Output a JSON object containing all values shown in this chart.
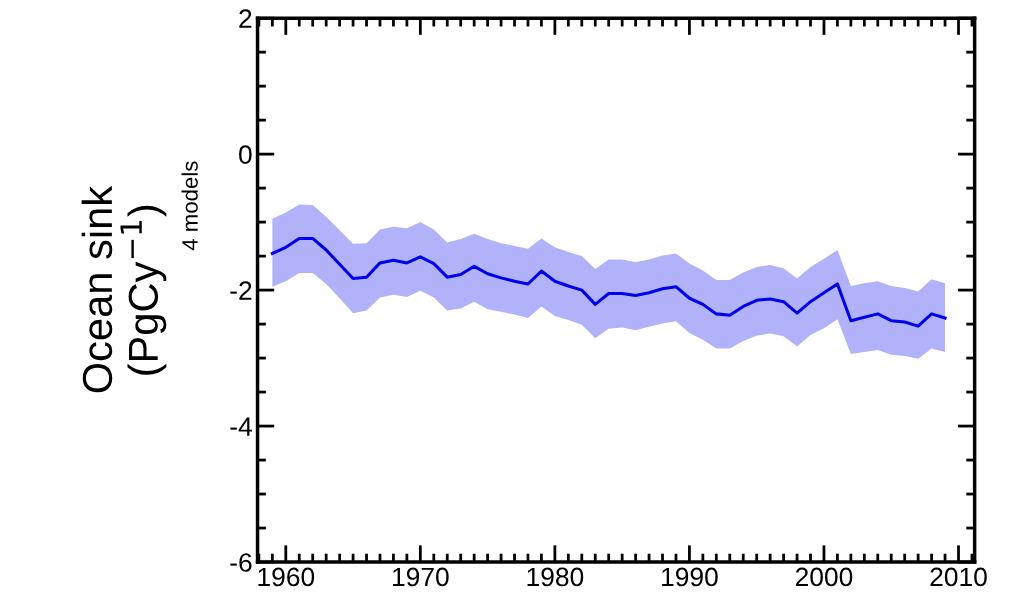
{
  "chart_data": {
    "type": "line",
    "ylabel": "Ocean sink\n(PgCy$^{−1}$)",
    "annotations": [
      "4 models"
    ],
    "x": [
      1959,
      1960,
      1961,
      1962,
      1963,
      1964,
      1965,
      1966,
      1967,
      1968,
      1969,
      1970,
      1971,
      1972,
      1973,
      1974,
      1975,
      1976,
      1977,
      1978,
      1979,
      1980,
      1981,
      1982,
      1983,
      1984,
      1985,
      1986,
      1987,
      1988,
      1989,
      1990,
      1991,
      1992,
      1993,
      1994,
      1995,
      1996,
      1997,
      1998,
      1999,
      2000,
      2001,
      2002,
      2003,
      2004,
      2005,
      2006,
      2007,
      2008,
      2009
    ],
    "series": [
      {
        "color": "#0000ee",
        "values": [
          -1.46,
          -1.37,
          -1.24,
          -1.24,
          -1.41,
          -1.62,
          -1.83,
          -1.81,
          -1.6,
          -1.56,
          -1.6,
          -1.51,
          -1.61,
          -1.81,
          -1.77,
          -1.65,
          -1.76,
          -1.82,
          -1.87,
          -1.91,
          -1.72,
          -1.87,
          -1.94,
          -2.0,
          -2.21,
          -2.05,
          -2.05,
          -2.08,
          -2.04,
          -1.98,
          -1.95,
          -2.12,
          -2.21,
          -2.35,
          -2.37,
          -2.24,
          -2.15,
          -2.13,
          -2.17,
          -2.34,
          -2.17,
          -2.04,
          -1.91,
          -2.45,
          -2.4,
          -2.35,
          -2.45,
          -2.47,
          -2.53,
          -2.35,
          -2.41
        ],
        "upper": [
          -0.95,
          -0.86,
          -0.74,
          -0.75,
          -0.92,
          -1.12,
          -1.32,
          -1.31,
          -1.11,
          -1.07,
          -1.09,
          -1.0,
          -1.11,
          -1.3,
          -1.25,
          -1.17,
          -1.25,
          -1.31,
          -1.35,
          -1.39,
          -1.24,
          -1.37,
          -1.44,
          -1.5,
          -1.69,
          -1.55,
          -1.55,
          -1.59,
          -1.55,
          -1.49,
          -1.46,
          -1.61,
          -1.71,
          -1.85,
          -1.85,
          -1.74,
          -1.66,
          -1.63,
          -1.68,
          -1.83,
          -1.66,
          -1.54,
          -1.41,
          -1.94,
          -1.9,
          -1.87,
          -1.94,
          -1.97,
          -2.02,
          -1.84,
          -1.9
        ],
        "lower": [
          -1.95,
          -1.87,
          -1.75,
          -1.75,
          -1.91,
          -2.12,
          -2.34,
          -2.3,
          -2.11,
          -2.07,
          -2.1,
          -2.01,
          -2.11,
          -2.3,
          -2.27,
          -2.17,
          -2.28,
          -2.32,
          -2.36,
          -2.41,
          -2.24,
          -2.38,
          -2.44,
          -2.51,
          -2.71,
          -2.57,
          -2.55,
          -2.59,
          -2.54,
          -2.49,
          -2.46,
          -2.63,
          -2.73,
          -2.86,
          -2.86,
          -2.75,
          -2.67,
          -2.64,
          -2.68,
          -2.83,
          -2.66,
          -2.56,
          -2.43,
          -2.94,
          -2.91,
          -2.88,
          -2.95,
          -2.97,
          -3.01,
          -2.86,
          -2.91
        ]
      }
    ],
    "xlim": [
      1957.9,
      2011.2
    ],
    "xticks": [
      1960,
      1970,
      1980,
      1990,
      2000,
      2010
    ],
    "ylim": [
      -6,
      2
    ],
    "yticks": [
      -6,
      -4,
      -2,
      0,
      2
    ],
    "grid": false,
    "legend": false,
    "marker": "none",
    "line_style": "solid"
  }
}
